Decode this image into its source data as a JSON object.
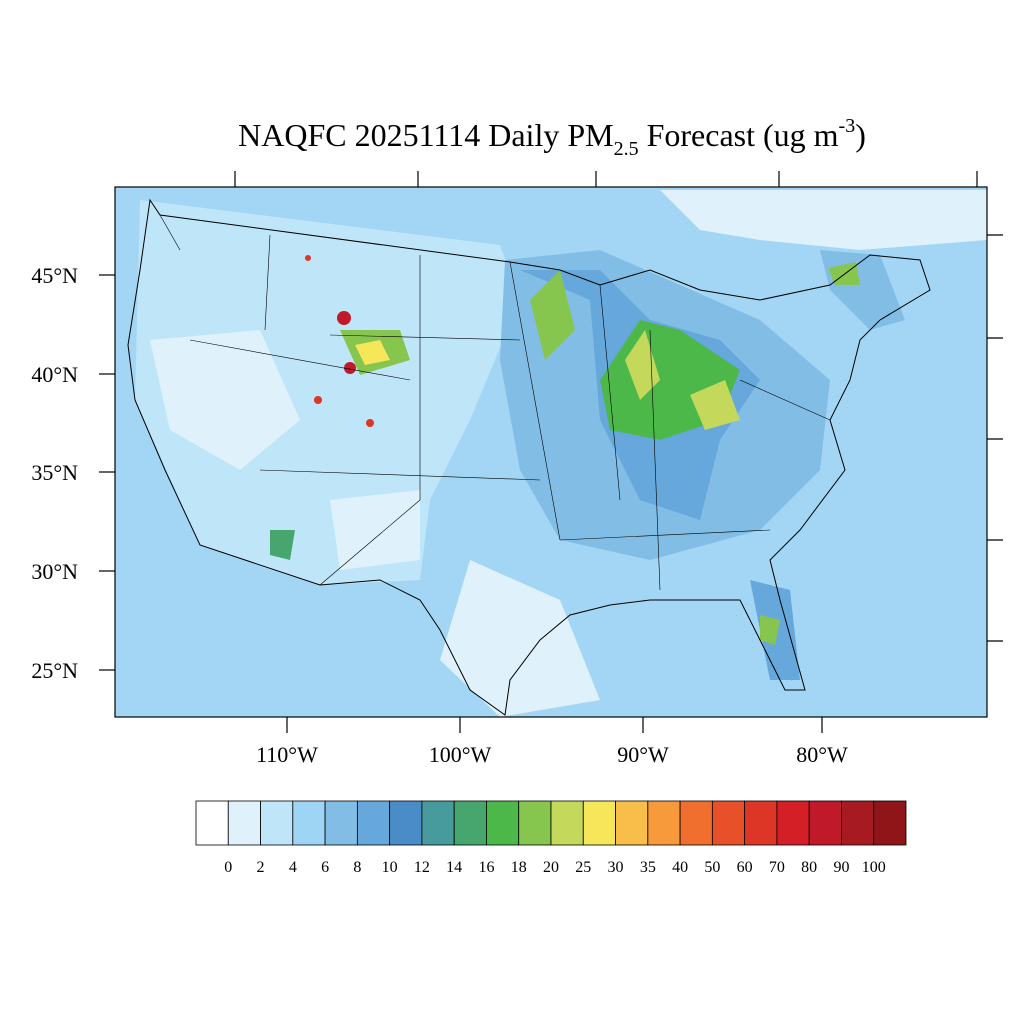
{
  "title": {
    "main": "NAQFC 20251114 Daily PM",
    "subscript": "2.5",
    "middle": " Forecast (ug m",
    "superscript": "-3",
    "end": ")"
  },
  "lat_labels": [
    "45°N",
    "40°N",
    "35°N",
    "30°N",
    "25°N"
  ],
  "lon_labels": [
    "110°W",
    "100°W",
    "90°W",
    "80°W"
  ],
  "colorbar": {
    "levels": [
      0,
      2,
      4,
      6,
      8,
      10,
      12,
      14,
      16,
      18,
      20,
      25,
      30,
      35,
      40,
      50,
      60,
      70,
      80,
      90,
      100
    ],
    "colors": [
      "#ffffff",
      "#dff1fb",
      "#bfe5f8",
      "#9fd5f4",
      "#82bde6",
      "#66a8dc",
      "#4a8cc8",
      "#479b9d",
      "#47a66d",
      "#4db84a",
      "#86c64f",
      "#c4d95b",
      "#f6e65a",
      "#f8be49",
      "#f69a3c",
      "#f06e2e",
      "#e85029",
      "#dd3526",
      "#d51f27",
      "#c0192a",
      "#a71a21",
      "#8f1519"
    ]
  }
}
